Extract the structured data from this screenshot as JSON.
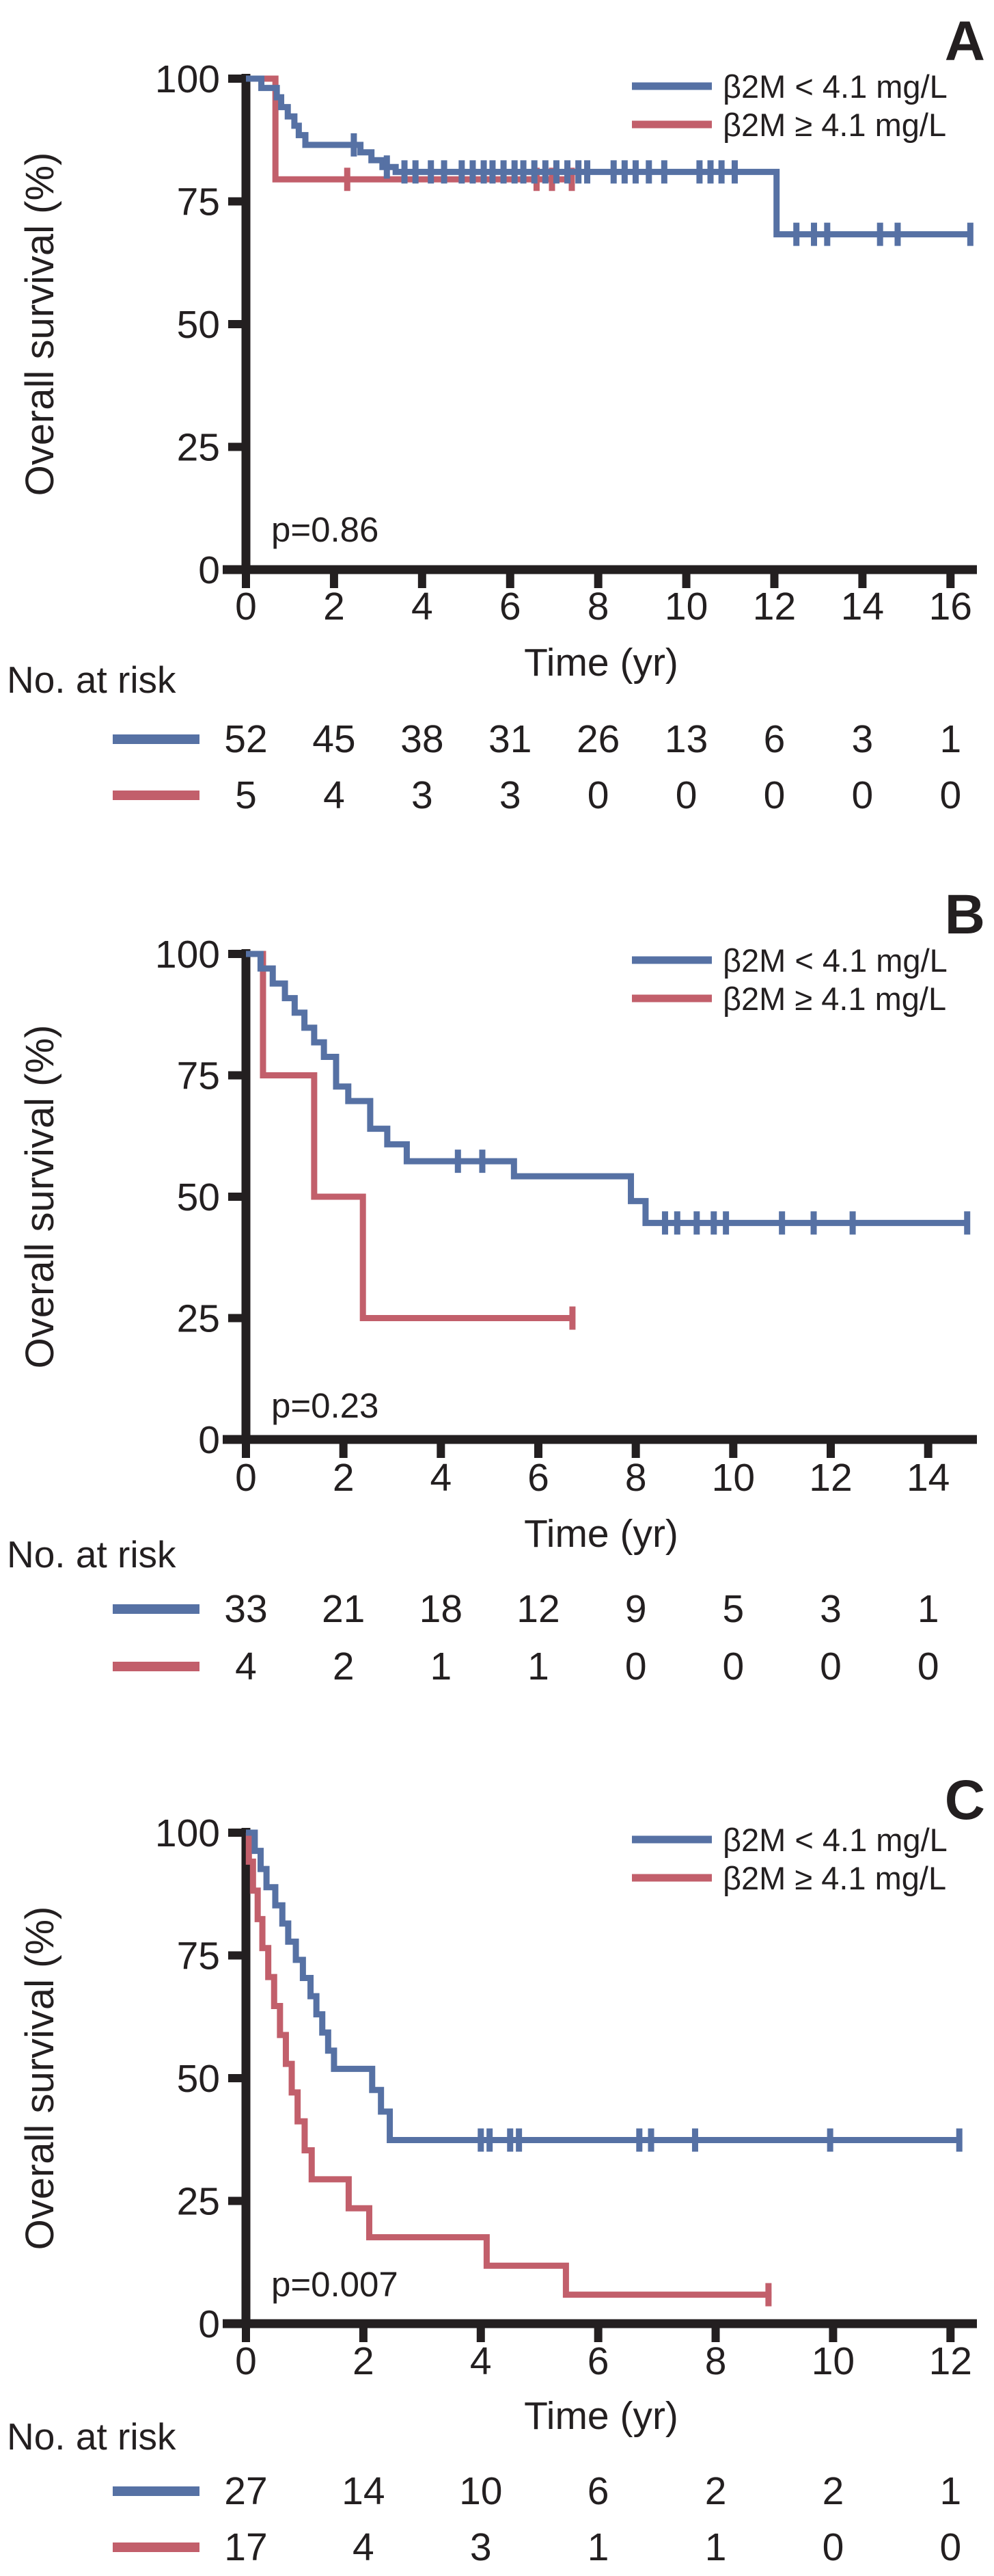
{
  "figure": {
    "y_axis_label": "Overall survival (%)",
    "x_axis_label": "Time (yr)",
    "at_risk_label": "No. at risk",
    "colors": {
      "low": "#5671a4",
      "high": "#c25f6b",
      "ink": "#231f20"
    },
    "legend": [
      {
        "label": "β2M < 4.1 mg/L",
        "color_key": "low"
      },
      {
        "label": "β2M ≥ 4.1 mg/L",
        "color_key": "high"
      }
    ]
  },
  "chart_data": [
    {
      "type": "line",
      "subtype": "kaplan-meier",
      "panel_label": "A",
      "p_value": "p=0.86",
      "xlabel": "Time (yr)",
      "ylabel": "Overall survival (%)",
      "x_ticks": [
        0,
        2,
        4,
        6,
        8,
        10,
        12,
        14,
        16
      ],
      "y_ticks": [
        0,
        25,
        50,
        75,
        100
      ],
      "xlim": [
        0,
        16.6
      ],
      "ylim": [
        0,
        100
      ],
      "legend_position": "top-right",
      "series": [
        {
          "name": "β2M < 4.1 mg/L",
          "color_key": "low",
          "start": 100,
          "steps": [
            [
              0.35,
              98.1
            ],
            [
              0.7,
              96.2
            ],
            [
              0.8,
              94.2
            ],
            [
              0.95,
              92.3
            ],
            [
              1.1,
              90.4
            ],
            [
              1.2,
              88.5
            ],
            [
              1.35,
              86.5
            ],
            [
              2.6,
              85.0
            ],
            [
              2.85,
              83.4
            ],
            [
              3.1,
              82.0
            ],
            [
              3.4,
              81.0
            ],
            [
              12.05,
              68.3
            ]
          ],
          "end_time": 16.5,
          "censor_times": [
            2.45,
            3.2,
            3.6,
            3.85,
            4.2,
            4.5,
            4.9,
            5.15,
            5.4,
            5.6,
            5.85,
            6.1,
            6.3,
            6.55,
            6.8,
            7.05,
            7.3,
            7.55,
            7.75,
            8.35,
            8.6,
            8.85,
            9.15,
            9.5,
            10.3,
            10.55,
            10.8,
            11.1,
            12.5,
            12.9,
            13.2,
            14.4,
            14.8,
            16.45
          ]
        },
        {
          "name": "β2M ≥ 4.1 mg/L",
          "color_key": "high",
          "start": 100,
          "steps": [
            [
              0.67,
              79.5
            ]
          ],
          "end_time": 7.45,
          "censor_times": [
            2.3,
            6.6,
            6.95,
            7.4
          ]
        }
      ],
      "at_risk": {
        "times": [
          0,
          2,
          4,
          6,
          8,
          10,
          12,
          14,
          16
        ],
        "rows": [
          {
            "series": "β2M < 4.1 mg/L",
            "color_key": "low",
            "counts": [
              52,
              45,
              38,
              31,
              26,
              13,
              6,
              3,
              1
            ]
          },
          {
            "series": "β2M ≥ 4.1 mg/L",
            "color_key": "high",
            "counts": [
              5,
              4,
              3,
              3,
              0,
              0,
              0,
              0,
              0
            ]
          }
        ]
      }
    },
    {
      "type": "line",
      "subtype": "kaplan-meier",
      "panel_label": "B",
      "p_value": "p=0.23",
      "xlabel": "Time (yr)",
      "ylabel": "Overall survival (%)",
      "x_ticks": [
        0,
        2,
        4,
        6,
        8,
        10,
        12,
        14
      ],
      "y_ticks": [
        0,
        25,
        50,
        75,
        100
      ],
      "xlim": [
        0,
        15.0
      ],
      "ylim": [
        0,
        100
      ],
      "legend_position": "top-right",
      "series": [
        {
          "name": "β2M < 4.1 mg/L",
          "color_key": "low",
          "start": 100,
          "steps": [
            [
              0.3,
              97.0
            ],
            [
              0.55,
              93.9
            ],
            [
              0.8,
              90.9
            ],
            [
              1.0,
              87.9
            ],
            [
              1.2,
              84.8
            ],
            [
              1.4,
              81.8
            ],
            [
              1.6,
              78.8
            ],
            [
              1.85,
              72.7
            ],
            [
              2.1,
              69.7
            ],
            [
              2.55,
              64.0
            ],
            [
              2.9,
              60.8
            ],
            [
              3.3,
              57.3
            ],
            [
              5.5,
              54.2
            ],
            [
              7.9,
              49.1
            ],
            [
              8.2,
              44.6
            ]
          ],
          "end_time": 14.85,
          "censor_times": [
            4.35,
            4.85,
            8.6,
            8.85,
            9.25,
            9.6,
            9.85,
            11.0,
            11.65,
            12.45,
            14.8
          ]
        },
        {
          "name": "β2M ≥ 4.1 mg/L",
          "color_key": "high",
          "start": 100,
          "steps": [
            [
              0.35,
              75.0
            ],
            [
              1.4,
              50.0
            ],
            [
              2.4,
              25.0
            ]
          ],
          "end_time": 6.75,
          "censor_times": [
            6.7
          ]
        }
      ],
      "at_risk": {
        "times": [
          0,
          2,
          4,
          6,
          8,
          10,
          12,
          14
        ],
        "rows": [
          {
            "series": "β2M < 4.1 mg/L",
            "color_key": "low",
            "counts": [
              33,
              21,
              18,
              12,
              9,
              5,
              3,
              1
            ]
          },
          {
            "series": "β2M ≥ 4.1 mg/L",
            "color_key": "high",
            "counts": [
              4,
              2,
              1,
              1,
              0,
              0,
              0,
              0
            ]
          }
        ]
      }
    },
    {
      "type": "line",
      "subtype": "kaplan-meier",
      "panel_label": "C",
      "p_value": "p=0.007",
      "xlabel": "Time (yr)",
      "ylabel": "Overall survival (%)",
      "x_ticks": [
        0,
        2,
        4,
        6,
        8,
        10,
        12
      ],
      "y_ticks": [
        0,
        25,
        50,
        75,
        100
      ],
      "xlim": [
        0,
        12.45
      ],
      "ylim": [
        0,
        100
      ],
      "legend_position": "top-right",
      "series": [
        {
          "name": "β2M < 4.1 mg/L",
          "color_key": "low",
          "start": 100,
          "steps": [
            [
              0.15,
              96.3
            ],
            [
              0.25,
              92.6
            ],
            [
              0.35,
              88.9
            ],
            [
              0.5,
              85.2
            ],
            [
              0.62,
              81.5
            ],
            [
              0.72,
              77.8
            ],
            [
              0.85,
              74.1
            ],
            [
              0.97,
              70.4
            ],
            [
              1.1,
              66.7
            ],
            [
              1.2,
              63.0
            ],
            [
              1.3,
              59.3
            ],
            [
              1.4,
              55.6
            ],
            [
              1.5,
              51.9
            ],
            [
              2.15,
              47.6
            ],
            [
              2.3,
              43.2
            ],
            [
              2.45,
              37.4
            ]
          ],
          "end_time": 12.2,
          "censor_times": [
            4.0,
            4.15,
            4.5,
            4.65,
            6.7,
            6.9,
            7.65,
            9.95,
            12.15
          ]
        },
        {
          "name": "β2M ≥ 4.1 mg/L",
          "color_key": "high",
          "start": 100,
          "steps": [
            [
              0.05,
              94.1
            ],
            [
              0.12,
              88.2
            ],
            [
              0.2,
              82.4
            ],
            [
              0.28,
              76.5
            ],
            [
              0.38,
              70.6
            ],
            [
              0.48,
              64.7
            ],
            [
              0.58,
              58.8
            ],
            [
              0.68,
              52.9
            ],
            [
              0.78,
              47.1
            ],
            [
              0.88,
              41.2
            ],
            [
              1.0,
              35.3
            ],
            [
              1.12,
              29.4
            ],
            [
              1.75,
              23.5
            ],
            [
              2.1,
              17.6
            ],
            [
              4.1,
              11.8
            ],
            [
              5.45,
              5.9
            ]
          ],
          "end_time": 8.95,
          "censor_times": [
            8.9
          ]
        }
      ],
      "at_risk": {
        "times": [
          0,
          2,
          4,
          6,
          8,
          10,
          12
        ],
        "rows": [
          {
            "series": "β2M < 4.1 mg/L",
            "color_key": "low",
            "counts": [
              27,
              14,
              10,
              6,
              2,
              2,
              1
            ]
          },
          {
            "series": "β2M ≥ 4.1 mg/L",
            "color_key": "high",
            "counts": [
              17,
              4,
              3,
              1,
              1,
              0,
              0
            ]
          }
        ]
      }
    }
  ]
}
